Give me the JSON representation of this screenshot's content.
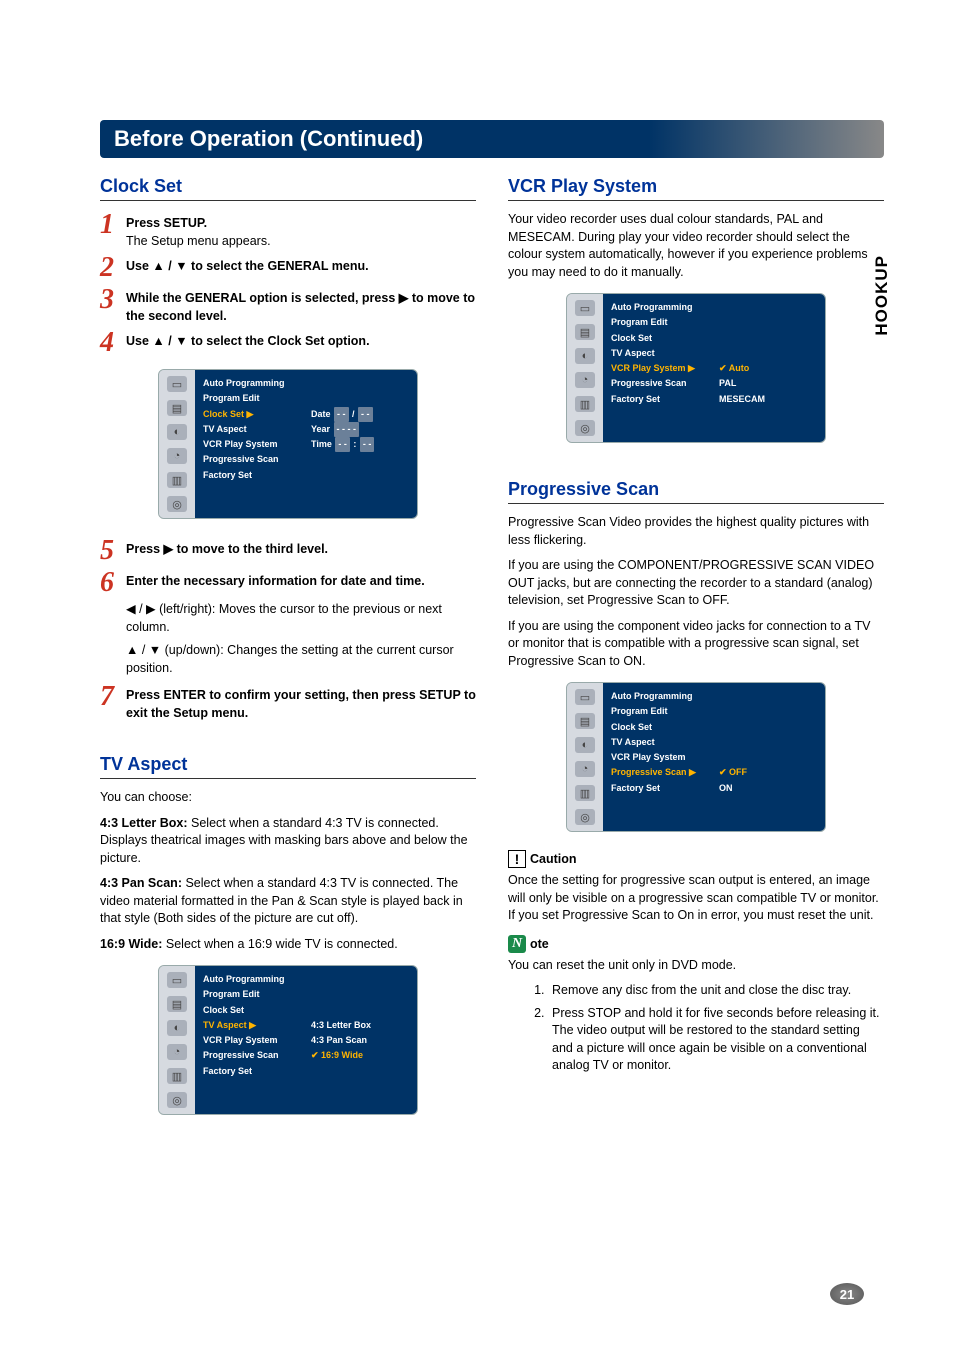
{
  "page_title": "Before Operation (Continued)",
  "side_label": "HOOKUP",
  "page_number": "21",
  "osd_menu_items": [
    "Auto Programming",
    "Program Edit",
    "Clock Set",
    "TV Aspect",
    "VCR Play System",
    "Progressive Scan",
    "Factory Set"
  ],
  "osd_icons": [
    "▭",
    "▤",
    "◐",
    "◔",
    "▥",
    "◎"
  ],
  "colors": {
    "title_bg": "#003366",
    "heading": "#003399",
    "step_num": "#cc3322",
    "osd_bg": "#003366",
    "osd_sel": "#ffb400",
    "note_icon": "#1a8a4a"
  },
  "left": {
    "clock_set": {
      "heading": "Clock Set",
      "steps": [
        {
          "n": "1",
          "bold": "Press SETUP.",
          "rest": "The Setup menu appears."
        },
        {
          "n": "2",
          "bold": "Use ▲ / ▼ to select the GENERAL menu.",
          "rest": ""
        },
        {
          "n": "3",
          "bold": "While the GENERAL option is selected, press ▶ to move to the second level.",
          "rest": ""
        },
        {
          "n": "4",
          "bold": "Use ▲ / ▼ to select the Clock Set option.",
          "rest": ""
        }
      ],
      "osd": {
        "selected_index": 2,
        "values": [
          {
            "label": "Date",
            "fields": [
              "- -",
              "/",
              "- -"
            ]
          },
          {
            "label": "Year",
            "fields": [
              "- - - -"
            ]
          },
          {
            "label": "Time",
            "fields": [
              "- -",
              ":",
              "- -"
            ]
          }
        ]
      },
      "steps_after": [
        {
          "n": "5",
          "bold": "Press ▶ to move to the third level.",
          "rest": ""
        },
        {
          "n": "6",
          "bold": "Enter the necessary information for date and time.",
          "rest": ""
        }
      ],
      "cursor_lines": [
        "◀ / ▶ (left/right): Moves the cursor to the previous or next column.",
        "▲ / ▼ (up/down): Changes the setting at the current cursor position."
      ],
      "step7": {
        "n": "7",
        "bold": "Press ENTER to confirm your setting, then press SETUP to exit the Setup menu.",
        "rest": ""
      }
    },
    "tv_aspect": {
      "heading": "TV Aspect",
      "intro": "You can choose:",
      "opts": [
        {
          "label": "4:3 Letter Box:",
          "text": " Select when a standard 4:3 TV is connected. Displays theatrical images with masking bars above and below the picture."
        },
        {
          "label": "4:3 Pan Scan:",
          "text": " Select when a standard 4:3 TV is connected. The video material formatted in the Pan & Scan style is played back in that style (Both sides of the picture are cut off)."
        },
        {
          "label": "16:9 Wide:",
          "text": " Select when a 16:9 wide TV is connected."
        }
      ],
      "osd": {
        "selected_index": 3,
        "values": [
          "4:3 Letter Box",
          "4:3 Pan Scan",
          "16:9 Wide"
        ],
        "selected_value_index": 2,
        "check": "✔"
      }
    }
  },
  "right": {
    "vcr_play": {
      "heading": "VCR Play System",
      "body": "Your video recorder uses dual colour standards, PAL and MESECAM. During play your video recorder should select the colour system automatically, however if you experience problems you may need to do it manually.",
      "osd": {
        "selected_index": 4,
        "values": [
          "Auto",
          "PAL",
          "MESECAM"
        ],
        "selected_value_index": 0,
        "check": "✔"
      }
    },
    "prog_scan": {
      "heading": "Progressive Scan",
      "paras": [
        "Progressive Scan Video provides the highest quality pictures with less flickering.",
        "If you are using the COMPONENT/PROGRESSIVE SCAN VIDEO OUT jacks, but are connecting the recorder to a standard (analog) television, set Progressive Scan to OFF.",
        "If you are using the component video jacks for connection to a TV or monitor that is compatible with a progressive scan signal, set Progressive Scan to ON."
      ],
      "osd": {
        "selected_index": 5,
        "values": [
          "OFF",
          "ON"
        ],
        "selected_value_index": 0,
        "check": "✔"
      },
      "caution_label": "Caution",
      "caution_body": "Once the setting for progressive scan output is entered, an image will only be visible on a progressive scan compatible TV or monitor. If you set Progressive Scan to On in error, you must reset the unit.",
      "note_label": "ote",
      "note_icon": "N",
      "note_intro": "You can reset the unit only in DVD mode.",
      "note_items": [
        "Remove any disc from the unit and close the disc tray.",
        "Press STOP and hold it for five seconds before releasing it. The video output will be restored to the standard setting and a picture will once again be visible on a conventional analog TV or monitor."
      ]
    }
  }
}
